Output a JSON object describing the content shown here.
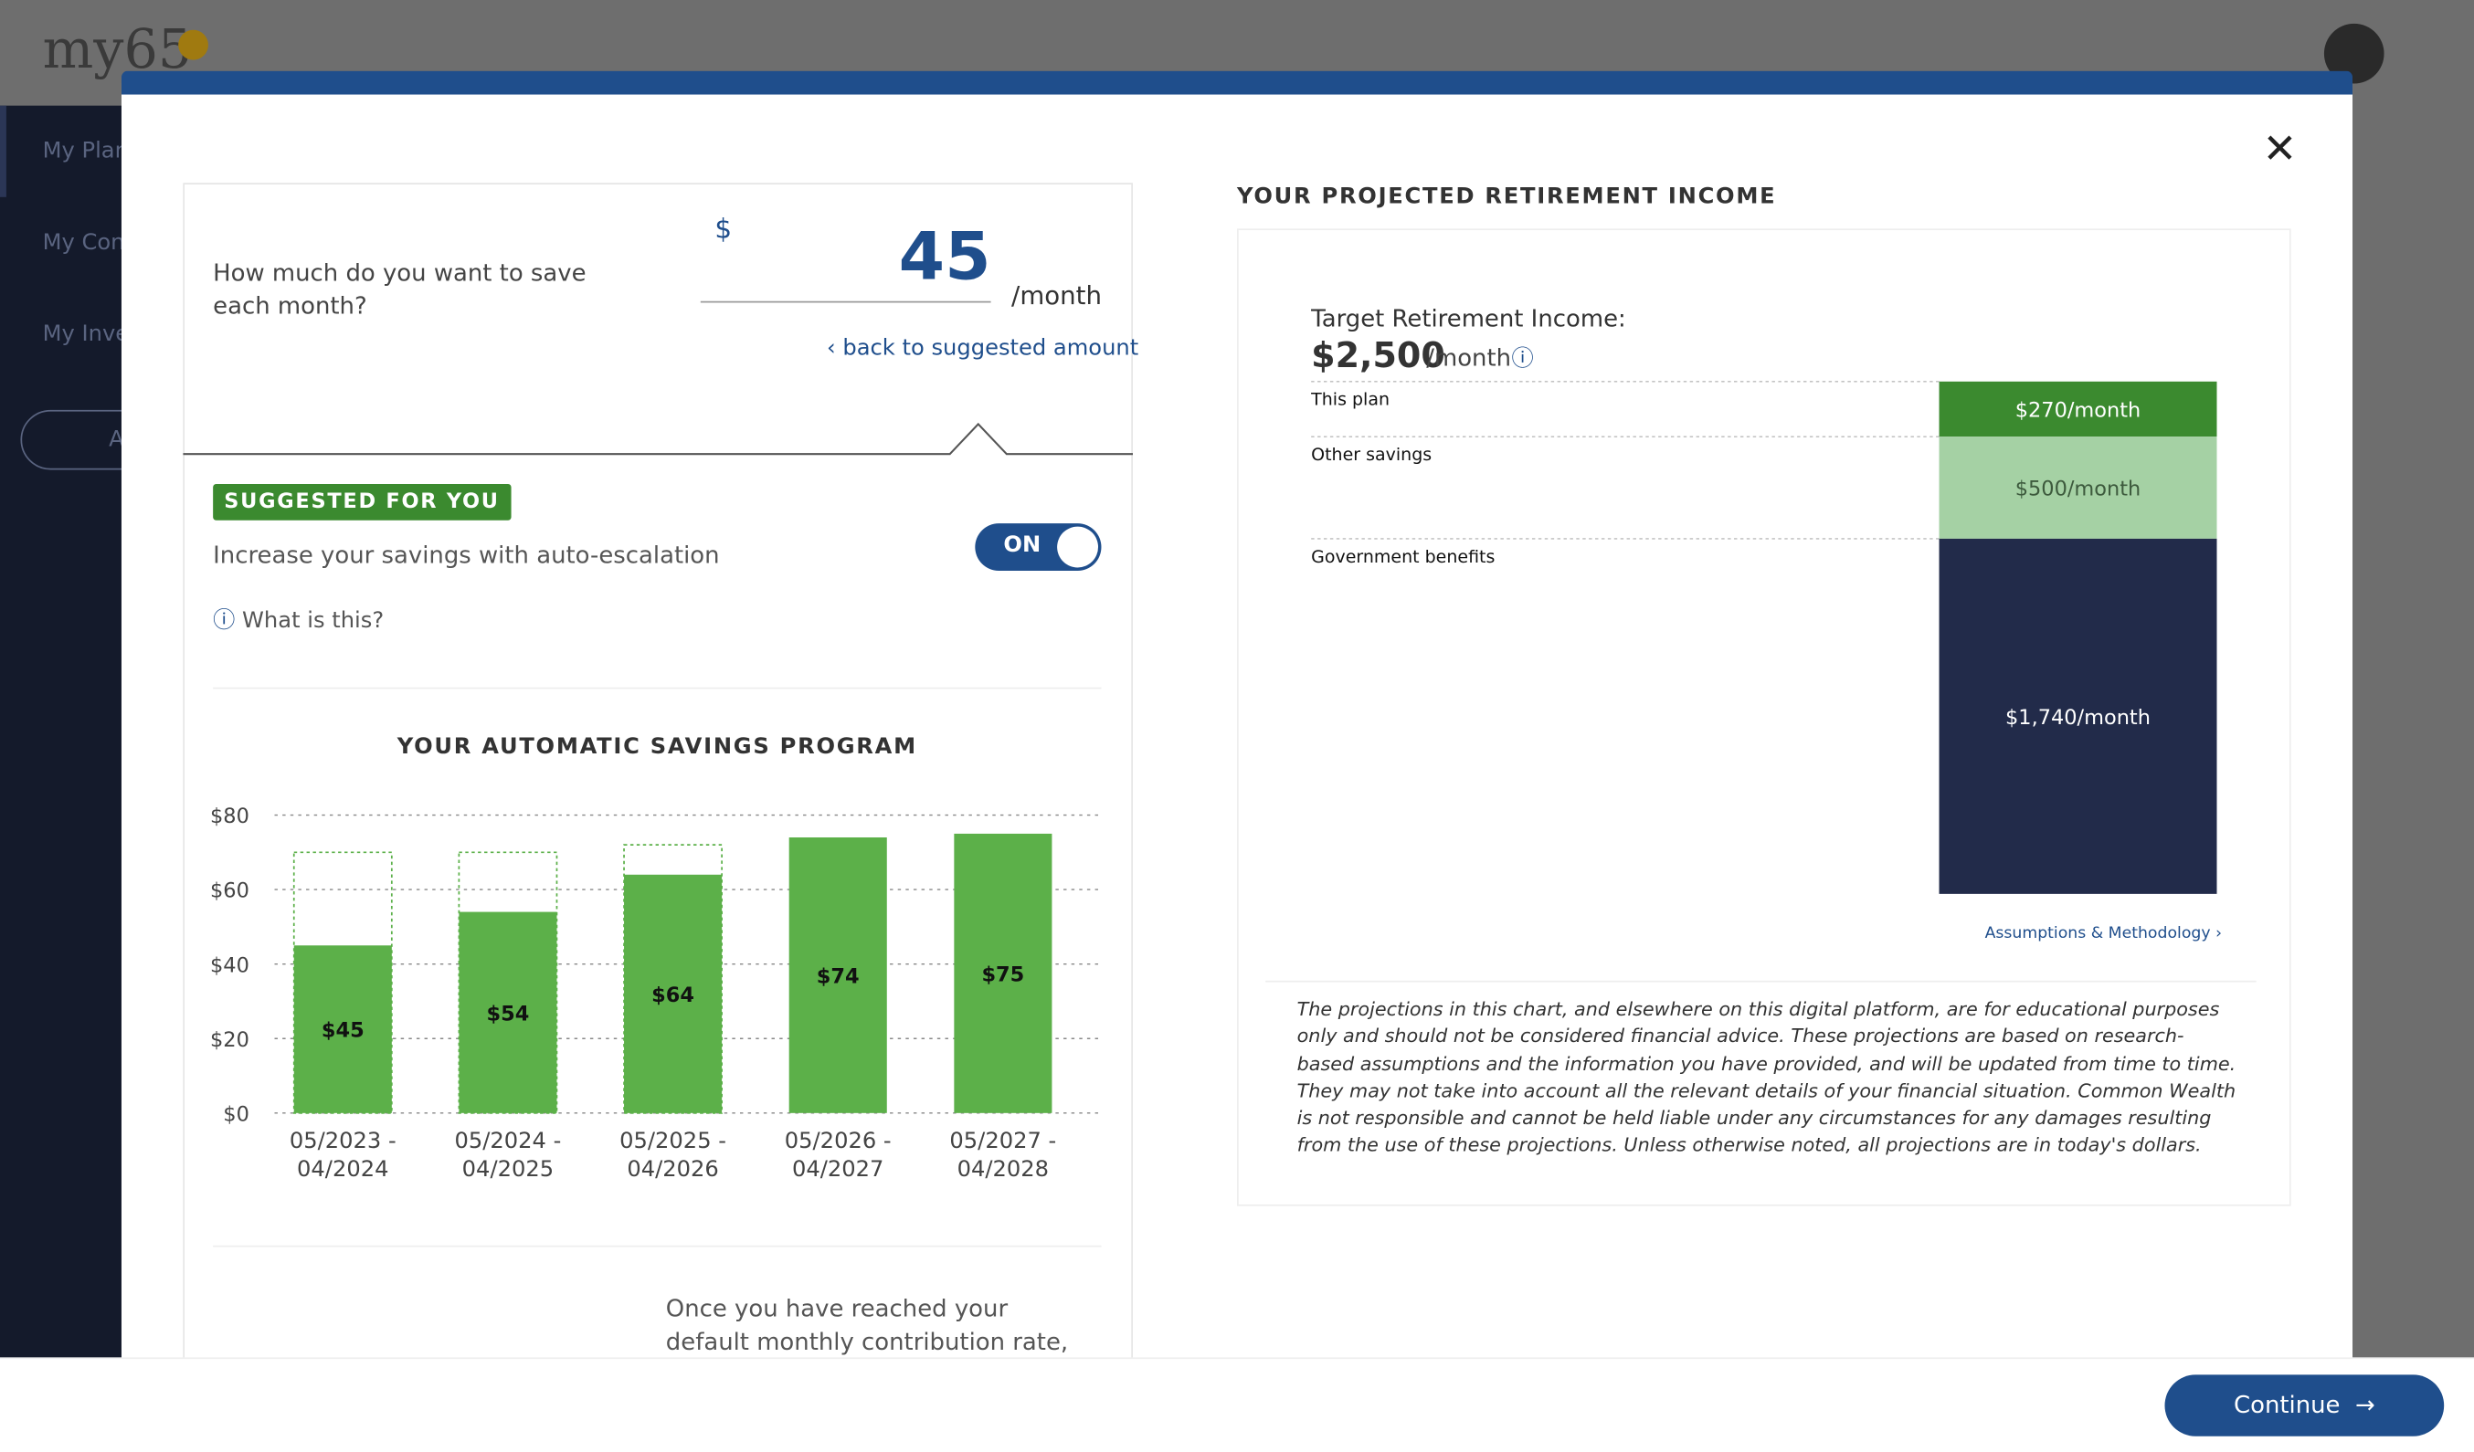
{
  "app": {
    "logo": "my65",
    "nav": [
      "My Plan",
      "My Con",
      "My Inve"
    ],
    "add": "A"
  },
  "savings_input": {
    "question": "How much do you want to save each month?",
    "currency": "$",
    "amount": 45,
    "unit": "/month",
    "back_link": "back to suggested amount"
  },
  "auto_escalation": {
    "badge": "SUGGESTED FOR YOU",
    "text": "Increase your savings with auto-escalation",
    "toggle": "ON",
    "help": "What is this?"
  },
  "savings_chart": {
    "type": "bar",
    "title": "YOUR AUTOMATIC SAVINGS PROGRAM",
    "categories": [
      "05/2023 - 04/2024",
      "05/2024 - 04/2025",
      "05/2025 - 04/2026",
      "05/2026 - 04/2027",
      "05/2027 - 04/2028"
    ],
    "values": [
      45,
      54,
      64,
      74,
      75
    ],
    "value_labels": [
      "$45",
      "$54",
      "$64",
      "$74",
      "$75"
    ],
    "suggested_values": [
      70,
      70,
      72,
      null,
      null
    ],
    "ylim": [
      0,
      80
    ],
    "yticks": [
      {
        "value": 0,
        "label": "$0"
      },
      {
        "value": 20,
        "label": "$20"
      },
      {
        "value": 40,
        "label": "$40"
      },
      {
        "value": 60,
        "label": "$60"
      },
      {
        "value": 80,
        "label": "$80"
      }
    ],
    "grid": true,
    "color": "#5cb049"
  },
  "note": "Once you have reached your default monthly contribution rate, your",
  "income": {
    "title": "YOUR PROJECTED RETIREMENT INCOME",
    "target_label": "Target Retirement Income:",
    "target": "$2,500",
    "target_unit": "/month",
    "segments": [
      {
        "name": "This plan",
        "value": 270,
        "value_label": "$270/month",
        "color": "#3b8a2f"
      },
      {
        "name": "Other savings",
        "value": 500,
        "value_label": "$500/month",
        "color": "#a5d1a4"
      },
      {
        "name": "Government benefits",
        "value": 1740,
        "value_label": "$1,740/month",
        "color": "#222b4a"
      }
    ],
    "link": "Assumptions & Methodology",
    "disclaimer": "The projections in this chart, and elsewhere on this digital platform, are for educational purposes only and should not be considered financial advice. These projections are based on research-based assumptions and the information you have provided, and will be updated from time to time. They may not take into account all the relevant details of your financial situation. Common Wealth is not responsible and cannot be held liable under any circumstances for any damages resulting from the use of these projections. Unless otherwise noted, all projections are in today's dollars."
  },
  "footer": {
    "button": "Continue"
  }
}
